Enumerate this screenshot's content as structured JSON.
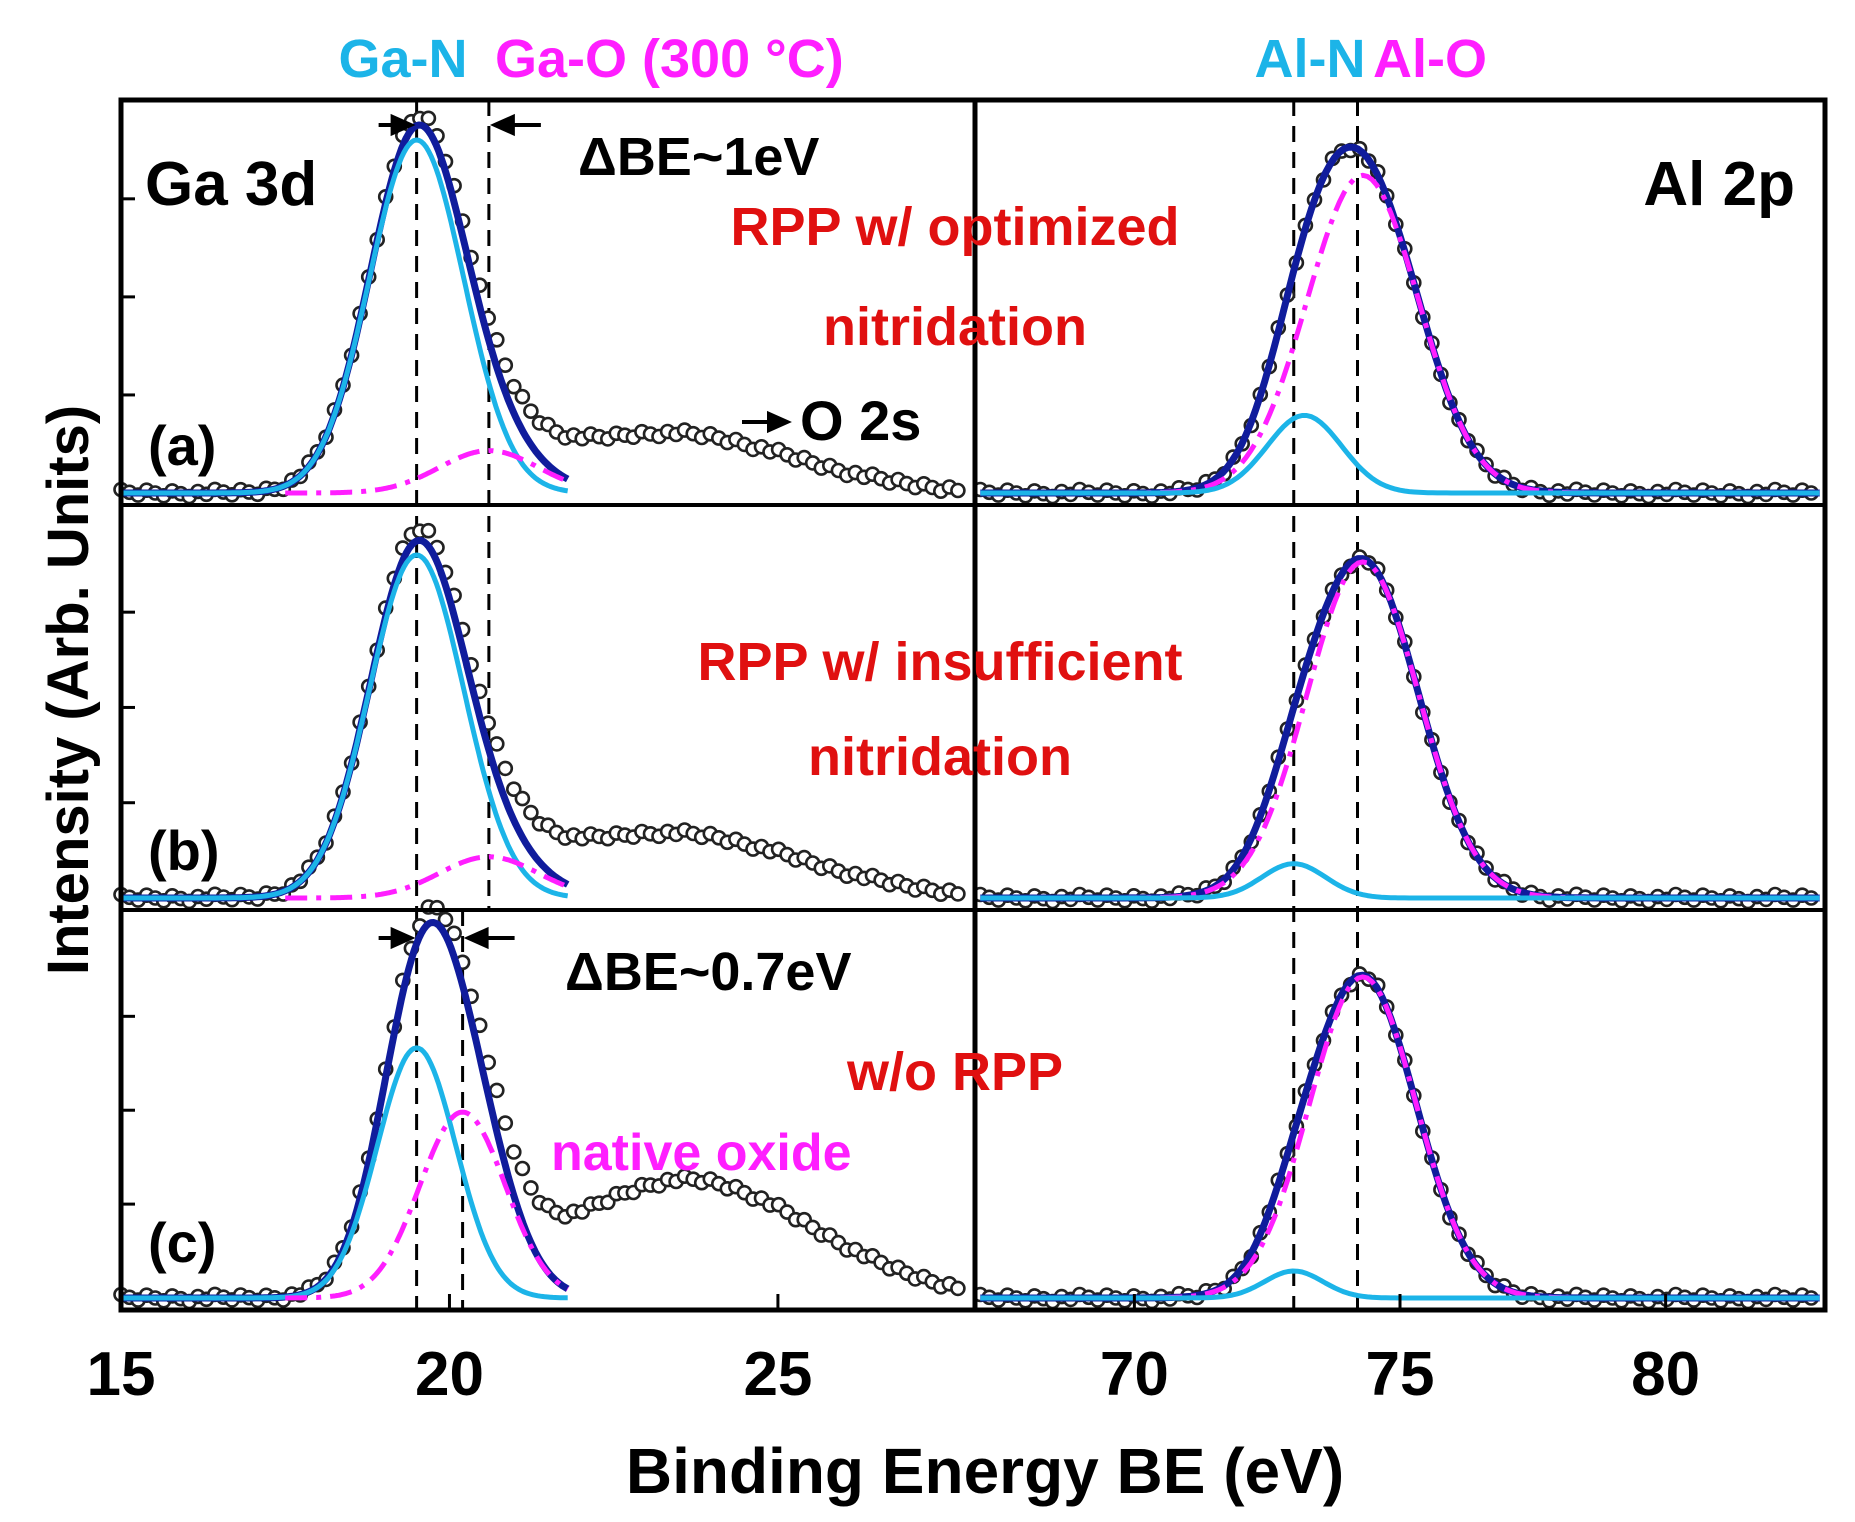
{
  "chart_data": {
    "type": "line",
    "title": "",
    "xlabel": "Binding Energy BE (eV)",
    "ylabel": "Intensity (Arb. Units)",
    "colors": {
      "data_points": "#222222",
      "envelope_fit": "#101c9c",
      "nitride_component": "#1cb4e8",
      "oxide_component": "#ff1eff",
      "annotation_red": "#e01010",
      "frame": "#000000"
    },
    "header_labels": {
      "ga_n": "Ga-N",
      "ga_o": "Ga-O (300 °C)",
      "al_n": "Al-N",
      "al_o": "Al-O"
    },
    "core_levels": {
      "ga": "Ga 3d",
      "al": "Al 2p"
    },
    "ga_panel": {
      "xlim": [
        15,
        28
      ],
      "x_ticks": [
        15,
        20,
        25
      ],
      "x_tick_labels": [
        "15",
        "20",
        "25"
      ],
      "reference_lines_eV": [
        19.5,
        20.6,
        20.2
      ],
      "o2s_label": "O 2s"
    },
    "al_panel": {
      "xlim": [
        67,
        83
      ],
      "x_ticks": [
        70,
        75,
        80
      ],
      "x_tick_labels": [
        "70",
        "75",
        "80"
      ],
      "reference_lines_eV": [
        73.0,
        74.2
      ]
    },
    "rows": [
      {
        "label": "(a)",
        "condition": "RPP w/ optimized nitridation",
        "condition_lines": [
          "RPP w/ optimized",
          "nitridation"
        ],
        "delta_be": "ΔBE~1eV",
        "ga3d": {
          "ga_n": {
            "center": 19.5,
            "sigma": 0.72,
            "amplitude": 1.0
          },
          "ga_o": {
            "center": 20.6,
            "sigma": 0.75,
            "amplitude": 0.12
          },
          "o2s": {
            "center": 23.3,
            "sigma": 1.9,
            "amplitude": 0.17
          }
        },
        "al2p": {
          "al_n": {
            "center": 73.2,
            "sigma": 0.7,
            "amplitude": 0.22
          },
          "al_o": {
            "center": 74.3,
            "sigma": 1.05,
            "amplitude": 0.9
          }
        }
      },
      {
        "label": "(b)",
        "condition": "RPP w/ insufficient nitridation",
        "condition_lines": [
          "RPP w/ insufficient",
          "nitridation"
        ],
        "delta_be": "",
        "ga3d": {
          "ga_n": {
            "center": 19.5,
            "sigma": 0.72,
            "amplitude": 1.0
          },
          "ga_o": {
            "center": 20.6,
            "sigma": 0.75,
            "amplitude": 0.12
          },
          "o2s": {
            "center": 23.3,
            "sigma": 2.0,
            "amplitude": 0.19
          }
        },
        "al2p": {
          "al_n": {
            "center": 73.0,
            "sigma": 0.6,
            "amplitude": 0.1
          },
          "al_o": {
            "center": 74.3,
            "sigma": 1.05,
            "amplitude": 0.98
          }
        }
      },
      {
        "label": "(c)",
        "condition": "w/o RPP",
        "condition_lines": [
          "w/o RPP"
        ],
        "delta_be": "ΔBE~0.7eV",
        "oxide_label": "native oxide",
        "ga3d": {
          "ga_n": {
            "center": 19.5,
            "sigma": 0.6,
            "amplitude": 0.74
          },
          "ga_o": {
            "center": 20.2,
            "sigma": 0.65,
            "amplitude": 0.55
          },
          "o2s": {
            "center": 23.6,
            "sigma": 1.9,
            "amplitude": 0.35
          }
        },
        "al2p": {
          "al_n": {
            "center": 73.0,
            "sigma": 0.55,
            "amplitude": 0.08
          },
          "al_o": {
            "center": 74.3,
            "sigma": 1.0,
            "amplitude": 0.95
          }
        }
      }
    ]
  }
}
